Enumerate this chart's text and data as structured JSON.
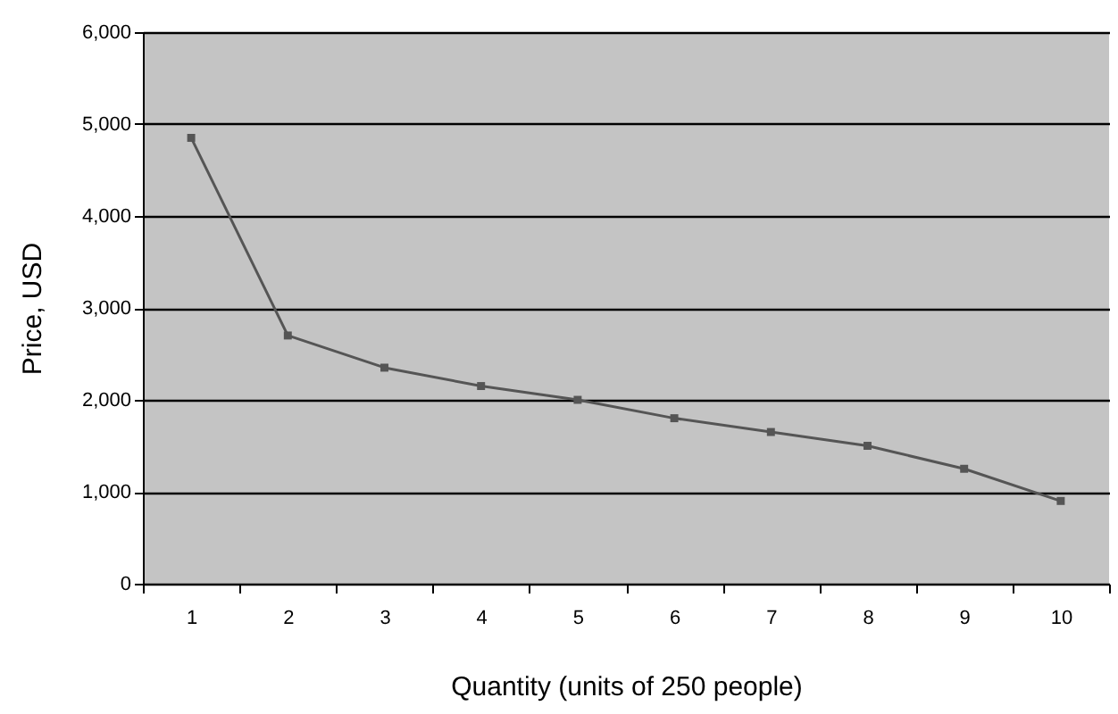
{
  "chart_data": {
    "type": "line",
    "xlabel": "Quantity (units of 250 people)",
    "ylabel": "Price, USD",
    "categories": [
      "1",
      "2",
      "3",
      "4",
      "5",
      "6",
      "7",
      "8",
      "9",
      "10"
    ],
    "series": [
      {
        "color": "#555555",
        "values": [
          4850,
          2700,
          2350,
          2150,
          2000,
          1800,
          1650,
          1500,
          1250,
          900
        ]
      }
    ],
    "ylim": [
      0,
      6000
    ],
    "yticks": [
      {
        "value": 0,
        "label": "0"
      },
      {
        "value": 1000,
        "label": "1,000"
      },
      {
        "value": 2000,
        "label": "2,000"
      },
      {
        "value": 3000,
        "label": "3,000"
      },
      {
        "value": 4000,
        "label": "4,000"
      },
      {
        "value": 5000,
        "label": "5,000"
      },
      {
        "value": 6000,
        "label": "6,000"
      }
    ],
    "grid": "y",
    "marker": "square",
    "legend": false
  }
}
